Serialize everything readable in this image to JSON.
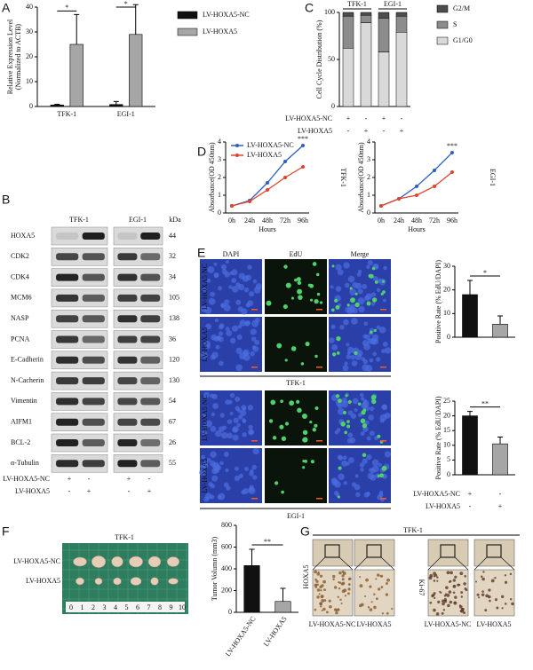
{
  "panel_labels": [
    "A",
    "B",
    "C",
    "D",
    "E",
    "F",
    "G"
  ],
  "chart_data": [
    {
      "type": "bar",
      "y_label": [
        "Relative Expression Level",
        "(Normalized to ACTB)"
      ],
      "categories": [
        "TFK-1",
        "EGI-1"
      ],
      "series": [
        {
          "name": "LV-HOXA5-NC",
          "color": "#111111",
          "values": [
            0.6,
            0.8
          ],
          "errors": [
            0.3,
            1.2
          ]
        },
        {
          "name": "LV-HOXA5",
          "color": "#a6a6a6",
          "values": [
            25,
            29
          ],
          "errors": [
            12,
            12
          ]
        }
      ],
      "annotations": [
        "*",
        "*"
      ],
      "ylim": [
        0,
        40
      ],
      "yticks": [
        0,
        10,
        20,
        30,
        40
      ]
    },
    {
      "type": "stacked_bar",
      "y_label": "Cell Cycle Distribution (%)",
      "groups": [
        "TFK-1",
        "EGI-1"
      ],
      "series": [
        {
          "name": "G2/M",
          "color": "#4d4d4d",
          "values": [
            4,
            3,
            6,
            4
          ]
        },
        {
          "name": "S",
          "color": "#8c8c8c",
          "values": [
            34,
            8,
            36,
            17
          ]
        },
        {
          "name": "G1/G0",
          "color": "#d9d9d9",
          "values": [
            62,
            89,
            58,
            79
          ]
        }
      ],
      "conditions": [
        {
          "name": "LV-HOXA5-NC",
          "signs": [
            "+",
            "-",
            "+",
            "-"
          ]
        },
        {
          "name": "LV-HOXA5",
          "signs": [
            "-",
            "+",
            "-",
            "+"
          ]
        }
      ],
      "ylim": [
        0,
        100
      ],
      "yticks": [
        0,
        50,
        100
      ]
    },
    {
      "type": "line",
      "x_label": "Hours",
      "y_label": "Absorbance(OD 450nm)",
      "categories": [
        "0h",
        "24h",
        "48h",
        "72h",
        "96h"
      ],
      "series": [
        {
          "name": "LV-HOXA5-NC",
          "color": "#2f5fc4",
          "values": [
            0.4,
            0.7,
            1.7,
            2.9,
            3.8
          ]
        },
        {
          "name": "LV-HOXA5",
          "color": "#e0452c",
          "values": [
            0.4,
            0.65,
            1.3,
            2.0,
            2.6
          ]
        }
      ],
      "annotation": "***",
      "side_label": "TFK-1",
      "ylim": [
        0,
        4
      ],
      "yticks": [
        0,
        1,
        2,
        3,
        4
      ]
    },
    {
      "type": "line",
      "x_label": "Hours",
      "y_label": "Absorbance(OD 450nm)",
      "categories": [
        "0h",
        "24h",
        "48h",
        "72h",
        "96h"
      ],
      "series": [
        {
          "color": "#2f5fc4",
          "values": [
            0.4,
            0.8,
            1.5,
            2.4,
            3.4
          ]
        },
        {
          "color": "#e0452c",
          "values": [
            0.4,
            0.8,
            1.0,
            1.5,
            2.3
          ]
        }
      ],
      "annotation": "***",
      "side_label": "EGI-1",
      "ylim": [
        0,
        4
      ],
      "yticks": [
        0,
        1,
        2,
        3,
        4
      ]
    },
    {
      "type": "bar",
      "y_label": "Positive Rate (% EdU/DAPI)",
      "values": [
        18,
        5.5
      ],
      "errors": [
        6,
        3.5
      ],
      "colors": [
        "#111111",
        "#a6a6a6"
      ],
      "annotation": "*",
      "ylim": [
        0,
        30
      ],
      "yticks": [
        0,
        10,
        20,
        30
      ]
    },
    {
      "type": "bar",
      "y_label": "Positive Rate (% EdU/DAPI)",
      "values": [
        20,
        10.5
      ],
      "errors": [
        1.5,
        2.3
      ],
      "colors": [
        "#111111",
        "#a6a6a6"
      ],
      "annotation": "**",
      "ylim": [
        0,
        25
      ],
      "yticks": [
        0,
        5,
        10,
        15,
        20,
        25
      ],
      "conditions": [
        {
          "name": "LV-HOXA5-NC",
          "signs": [
            "+",
            "-"
          ]
        },
        {
          "name": "LV-HOXA5",
          "signs": [
            "-",
            "+"
          ]
        }
      ]
    },
    {
      "type": "bar",
      "y_label": "Tumor Volumn (mm3)",
      "categories": [
        "LV-HOXA5-NC",
        "LV-HOXA5"
      ],
      "values": [
        430,
        100
      ],
      "errors": [
        150,
        120
      ],
      "colors": [
        "#111111",
        "#a6a6a6"
      ],
      "annotation": "**",
      "ylim": [
        0,
        800
      ],
      "yticks": [
        0,
        200,
        400,
        600,
        800
      ]
    }
  ],
  "western_blot": {
    "cell_lines": [
      "TFK-1",
      "EGI-1"
    ],
    "unit": "kDa",
    "proteins": [
      "HOXA5",
      "CDK2",
      "CDK4",
      "MCM6",
      "NASP",
      "PCNA",
      "E-Cadherin",
      "N-Cacherin",
      "Vimentin",
      "AIFM1",
      "BCL-2",
      "α-Tubulin"
    ],
    "kda": [
      44,
      32,
      34,
      105,
      138,
      36,
      120,
      130,
      54,
      67,
      26,
      55
    ],
    "conditions": [
      {
        "name": "LV-HOXA5-NC",
        "signs": [
          "+",
          "-",
          "+",
          "-"
        ]
      },
      {
        "name": "LV-HOXA5",
        "signs": [
          "-",
          "+",
          "-",
          "+"
        ]
      }
    ]
  },
  "edu_images": {
    "columns": [
      "DAPI",
      "EdU",
      "Merge"
    ],
    "rows": [
      "LV-HOXA5 NC",
      "LV-HOXA5",
      "LV-HOXA5 NC",
      "LV-HOXA5"
    ],
    "cell_lines": [
      "TFK-1",
      "EGI-1"
    ]
  },
  "tumor_photo": {
    "cell_line": "TFK-1",
    "rows": [
      "LV-HOXA5-NC",
      "LV-HOXA5"
    ],
    "ruler": [
      0,
      1,
      2,
      3,
      4,
      5,
      6,
      7,
      8,
      9,
      10
    ]
  },
  "ihc": {
    "cell_line": "TFK-1",
    "stains": [
      "HOXA5",
      "Ki-67"
    ],
    "captions": [
      "LV-HOXA5-NC",
      "LV-HOXA5",
      "LV-HOXA5-NC",
      "LV-HOXA5"
    ]
  }
}
